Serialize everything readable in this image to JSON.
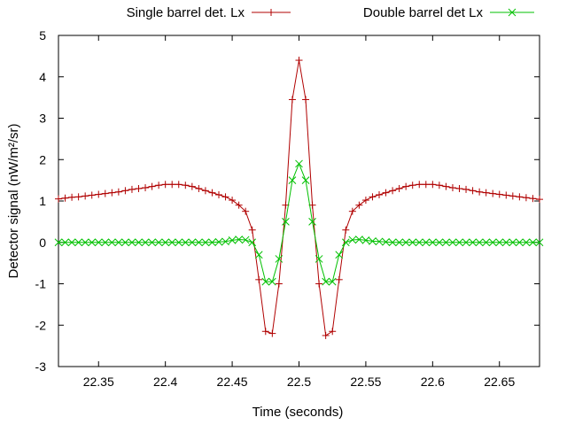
{
  "chart_data": {
    "type": "line",
    "title": "",
    "xlabel": "Time (seconds)",
    "ylabel": "Detector signal (nW/m²/sr)",
    "xlim": [
      22.32,
      22.68
    ],
    "ylim": [
      -3,
      5
    ],
    "x_ticks": [
      22.35,
      22.4,
      22.45,
      22.5,
      22.55,
      22.6,
      22.65
    ],
    "x_tick_labels": [
      "22.35",
      "22.4",
      "22.45",
      "22.5",
      "22.55",
      "22.6",
      "22.65"
    ],
    "y_ticks": [
      -3,
      -2,
      -1,
      0,
      1,
      2,
      3,
      4,
      5
    ],
    "y_tick_labels": [
      "-3",
      "-2",
      "-1",
      "0",
      "1",
      "2",
      "3",
      "4",
      "5"
    ],
    "grid": false,
    "legend_position": "top",
    "series": [
      {
        "name": "Single barrel det. Lx",
        "color": "#b00000",
        "marker": "plus",
        "x": [
          22.32,
          22.325,
          22.33,
          22.335,
          22.34,
          22.345,
          22.35,
          22.355,
          22.36,
          22.365,
          22.37,
          22.375,
          22.38,
          22.385,
          22.39,
          22.395,
          22.4,
          22.405,
          22.41,
          22.415,
          22.42,
          22.425,
          22.43,
          22.435,
          22.44,
          22.445,
          22.45,
          22.455,
          22.46,
          22.465,
          22.47,
          22.475,
          22.48,
          22.485,
          22.49,
          22.495,
          22.5,
          22.505,
          22.51,
          22.515,
          22.52,
          22.525,
          22.53,
          22.535,
          22.54,
          22.545,
          22.55,
          22.555,
          22.56,
          22.565,
          22.57,
          22.575,
          22.58,
          22.585,
          22.59,
          22.595,
          22.6,
          22.605,
          22.61,
          22.615,
          22.62,
          22.625,
          22.63,
          22.635,
          22.64,
          22.645,
          22.65,
          22.655,
          22.66,
          22.665,
          22.67,
          22.675,
          22.68
        ],
        "y": [
          1.05,
          1.07,
          1.09,
          1.1,
          1.12,
          1.14,
          1.16,
          1.18,
          1.2,
          1.22,
          1.25,
          1.28,
          1.3,
          1.32,
          1.35,
          1.38,
          1.4,
          1.4,
          1.4,
          1.38,
          1.35,
          1.3,
          1.25,
          1.2,
          1.15,
          1.1,
          1.02,
          0.9,
          0.75,
          0.3,
          -0.9,
          -2.15,
          -2.2,
          -1.0,
          0.9,
          3.45,
          4.4,
          3.45,
          0.9,
          -1.0,
          -2.25,
          -2.15,
          -0.9,
          0.3,
          0.75,
          0.9,
          1.02,
          1.1,
          1.15,
          1.2,
          1.25,
          1.3,
          1.35,
          1.38,
          1.4,
          1.4,
          1.4,
          1.38,
          1.35,
          1.32,
          1.3,
          1.28,
          1.25,
          1.22,
          1.2,
          1.18,
          1.16,
          1.14,
          1.12,
          1.1,
          1.08,
          1.06,
          1.04
        ]
      },
      {
        "name": "Double barrel det Lx",
        "color": "#00c000",
        "marker": "cross",
        "x": [
          22.32,
          22.325,
          22.33,
          22.335,
          22.34,
          22.345,
          22.35,
          22.355,
          22.36,
          22.365,
          22.37,
          22.375,
          22.38,
          22.385,
          22.39,
          22.395,
          22.4,
          22.405,
          22.41,
          22.415,
          22.42,
          22.425,
          22.43,
          22.435,
          22.44,
          22.445,
          22.45,
          22.455,
          22.46,
          22.465,
          22.47,
          22.475,
          22.48,
          22.485,
          22.49,
          22.495,
          22.5,
          22.505,
          22.51,
          22.515,
          22.52,
          22.525,
          22.53,
          22.535,
          22.54,
          22.545,
          22.55,
          22.555,
          22.56,
          22.565,
          22.57,
          22.575,
          22.58,
          22.585,
          22.59,
          22.595,
          22.6,
          22.605,
          22.61,
          22.615,
          22.62,
          22.625,
          22.63,
          22.635,
          22.64,
          22.645,
          22.65,
          22.655,
          22.66,
          22.665,
          22.67,
          22.675,
          22.68
        ],
        "y": [
          0,
          0,
          0,
          0,
          0,
          0,
          0,
          0,
          0,
          0,
          0,
          0,
          0,
          0,
          0,
          0,
          0,
          0,
          0,
          0,
          0,
          0,
          0,
          0,
          0.01,
          0.02,
          0.05,
          0.07,
          0.06,
          0.0,
          -0.3,
          -0.95,
          -0.95,
          -0.4,
          0.5,
          1.5,
          1.9,
          1.5,
          0.5,
          -0.4,
          -0.95,
          -0.95,
          -0.3,
          0.0,
          0.06,
          0.07,
          0.05,
          0.03,
          0.02,
          0.01,
          0,
          0,
          0,
          0,
          0,
          0,
          0,
          0,
          0,
          0,
          0,
          0,
          0,
          0,
          0,
          0,
          0,
          0,
          0,
          0,
          0,
          0,
          0
        ]
      }
    ]
  }
}
